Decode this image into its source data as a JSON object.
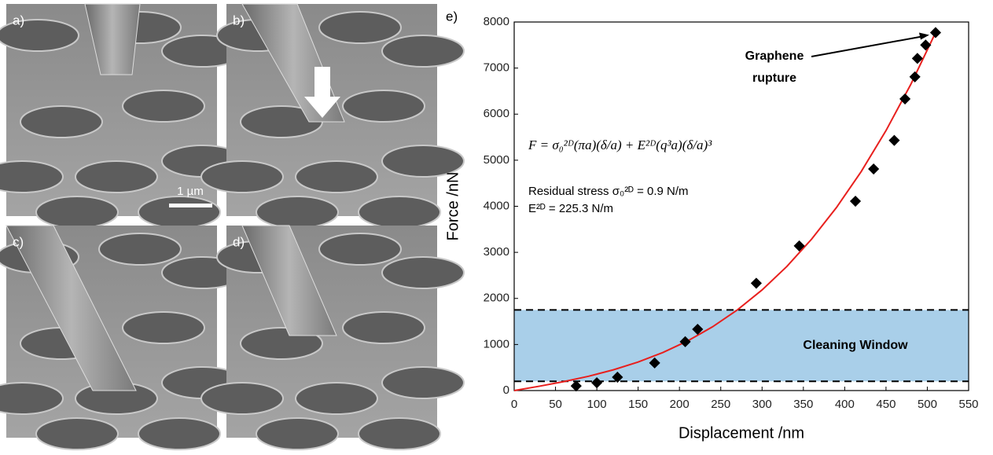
{
  "images": {
    "panels": [
      {
        "label": "a)"
      },
      {
        "label": "b)"
      },
      {
        "label": "c)"
      },
      {
        "label": "d)"
      }
    ],
    "scale_bar": "1 µm"
  },
  "chart_data": {
    "type": "scatter",
    "panel_label": "e)",
    "xlabel": "Displacement /nm",
    "ylabel": "Force /nN",
    "x": [
      75,
      100,
      125,
      170,
      207,
      222,
      293,
      345,
      413,
      435,
      460,
      473,
      485,
      488,
      498,
      510
    ],
    "values": [
      100,
      170,
      290,
      600,
      1060,
      1330,
      2330,
      3140,
      4110,
      4810,
      5430,
      6330,
      6810,
      7210,
      7500,
      7770
    ],
    "color": "#000000",
    "fit": {
      "x": [
        0,
        30,
        60,
        90,
        120,
        150,
        180,
        210,
        240,
        270,
        300,
        330,
        360,
        390,
        420,
        450,
        480,
        510
      ],
      "values": [
        0,
        93,
        194,
        310,
        450,
        619,
        826,
        1078,
        1383,
        1750,
        2184,
        2694,
        3288,
        3972,
        4754,
        5643,
        6646,
        7770
      ],
      "color": "#e8201e"
    },
    "band": {
      "label": "Cleaning Window",
      "ymin": 200,
      "ymax": 1750,
      "color": "#a9cfe9"
    },
    "equation": "F = σ₀²ᴰ(πa)(δ/a) + E²ᴰ(q³a)(δ/a)³",
    "annotations": [
      "Residual stress σ₀²ᴰ = 0.9 N/m",
      "E²ᴰ = 225.3 N/m"
    ],
    "arrow_annotation": {
      "lines": [
        "Graphene",
        "rupture"
      ],
      "x": 510,
      "y": 7770
    },
    "xlim": [
      0,
      550
    ],
    "ylim": [
      0,
      8000
    ],
    "xticks": [
      0,
      50,
      100,
      150,
      200,
      250,
      300,
      350,
      400,
      450,
      500,
      550
    ],
    "yticks": [
      0,
      1000,
      2000,
      3000,
      4000,
      5000,
      6000,
      7000,
      8000
    ]
  }
}
